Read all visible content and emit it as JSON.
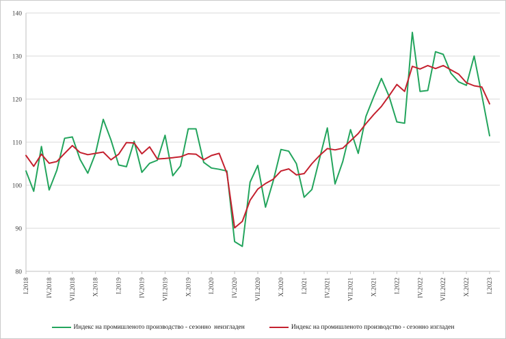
{
  "chart_data": {
    "type": "line",
    "title": "",
    "xlabel": "",
    "ylabel": "",
    "ylim": [
      80,
      140
    ],
    "y_ticks": [
      80,
      90,
      100,
      110,
      120,
      130,
      140
    ],
    "grid": "horizontal",
    "legend_position": "bottom",
    "x_tick_every": 3,
    "x_tick_labels": [
      "I.2018",
      "IV.2018",
      "VII.2018",
      "X.2018",
      "I.2019",
      "IV.2019",
      "VII.2019",
      "X.2019",
      "I.2020",
      "IV.2020",
      "VII.2020",
      "X.2020",
      "I.2021",
      "IV.2021",
      "VII.2021",
      "X.2021",
      "I.2022",
      "IV.2022",
      "VII.2022",
      "X.2022",
      "I.2023"
    ],
    "categories": [
      "I.2018",
      "II.2018",
      "III.2018",
      "IV.2018",
      "V.2018",
      "VI.2018",
      "VII.2018",
      "VIII.2018",
      "IX.2018",
      "X.2018",
      "XI.2018",
      "XII.2018",
      "I.2019",
      "II.2019",
      "III.2019",
      "IV.2019",
      "V.2019",
      "VI.2019",
      "VII.2019",
      "VIII.2019",
      "IX.2019",
      "X.2019",
      "XI.2019",
      "XII.2019",
      "I.2020",
      "II.2020",
      "III.2020",
      "IV.2020",
      "V.2020",
      "VI.2020",
      "VII.2020",
      "VIII.2020",
      "IX.2020",
      "X.2020",
      "XI.2020",
      "XII.2020",
      "I.2021",
      "II.2021",
      "III.2021",
      "IV.2021",
      "V.2021",
      "VI.2021",
      "VII.2021",
      "VIII.2021",
      "IX.2021",
      "X.2021",
      "XI.2021",
      "XII.2021",
      "I.2022",
      "II.2022",
      "III.2022",
      "IV.2022",
      "V.2022",
      "VI.2022",
      "VII.2022",
      "VIII.2022",
      "IX.2022",
      "X.2022",
      "XI.2022",
      "XII.2022",
      "I.2023"
    ],
    "series": [
      {
        "name": "Индекс на промишленото производство - сезонно  неизгладен",
        "color": "#22a45c",
        "values": [
          103.3,
          98.6,
          109.0,
          98.9,
          103.5,
          110.9,
          111.2,
          106.0,
          102.8,
          107.4,
          115.3,
          110.5,
          104.7,
          104.3,
          110.2,
          103.0,
          105.1,
          105.8,
          111.6,
          102.2,
          104.5,
          113.1,
          113.1,
          105.3,
          104.0,
          103.7,
          103.3,
          86.9,
          85.8,
          100.7,
          104.6,
          94.9,
          101.0,
          108.3,
          107.9,
          105.0,
          97.2,
          99.0,
          106.2,
          113.3,
          100.3,
          105.5,
          112.9,
          107.4,
          116.0,
          120.5,
          124.8,
          120.6,
          114.7,
          114.4,
          135.5,
          121.8,
          122.0,
          131.0,
          130.4,
          126.0,
          124.0,
          123.2,
          130.0,
          120.9,
          111.5
        ]
      },
      {
        "name": "Индекс на промишленото производство - сезонно изгладен",
        "color": "#c4202e",
        "values": [
          106.9,
          104.4,
          107.2,
          105.1,
          105.5,
          107.4,
          109.2,
          107.6,
          107.1,
          107.4,
          107.7,
          105.9,
          107.2,
          109.9,
          109.8,
          107.3,
          108.9,
          106.1,
          106.2,
          106.4,
          106.6,
          107.3,
          107.2,
          105.9,
          106.9,
          107.4,
          102.8,
          90.1,
          91.6,
          96.5,
          99.1,
          100.4,
          101.4,
          103.3,
          103.8,
          102.4,
          102.7,
          105.0,
          106.9,
          108.5,
          108.2,
          108.6,
          110.3,
          112.0,
          114.3,
          116.4,
          118.3,
          120.8,
          123.4,
          121.8,
          127.6,
          127.0,
          127.8,
          127.1,
          127.8,
          126.8,
          125.8,
          123.8,
          123.1,
          122.8,
          118.9
        ]
      }
    ]
  }
}
